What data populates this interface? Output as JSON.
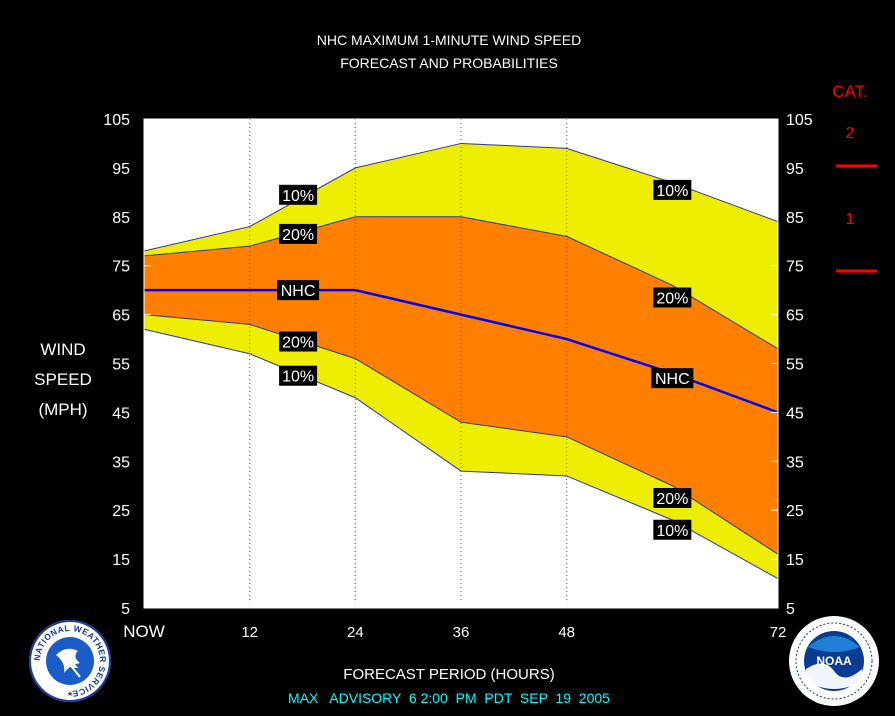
{
  "title_line1": "NHC MAXIMUM 1-MINUTE WIND SPEED",
  "title_line2": "FORECAST AND PROBABILITIES",
  "ylabel_lines": [
    "WIND",
    "SPEED",
    "(MPH)"
  ],
  "xlabel": "FORECAST PERIOD (HOURS)",
  "advisory": "MAX   ADVISORY  6 2:00  PM  PDT  SEP  19  2005",
  "category_header": "CAT.",
  "category_labels": [
    "2",
    "1"
  ],
  "logos": {
    "left": {
      "name": "nws-logo",
      "ring_text": "NATIONAL WEATHER SERVICE"
    },
    "right": {
      "name": "noaa-logo",
      "center_text": "NOAA"
    }
  },
  "colors": {
    "background": "#000000",
    "plot_background": "#ffffff",
    "band_10": "#eeee00",
    "band_20": "#ff8000",
    "nhc_line": "#0000ff",
    "category_red": "#ff0000",
    "footer_text": "#00ffff"
  },
  "chart_data": {
    "type": "area",
    "x": [
      0,
      12,
      24,
      36,
      48,
      60,
      72
    ],
    "x_tick_values": [
      0,
      12,
      24,
      36,
      48,
      72
    ],
    "x_tick_labels": [
      "NOW",
      "12",
      "24",
      "36",
      "48",
      "72"
    ],
    "y_ticks": [
      5,
      15,
      25,
      35,
      45,
      55,
      65,
      75,
      85,
      95,
      105
    ],
    "xlim": [
      0,
      72
    ],
    "ylim": [
      5,
      105
    ],
    "grid_x": [
      12,
      24,
      36,
      48
    ],
    "series": [
      {
        "name": "10%",
        "role": "upper_10",
        "values": [
          78,
          83,
          95,
          100,
          99,
          92,
          84
        ]
      },
      {
        "name": "20%",
        "role": "upper_20",
        "values": [
          77,
          79,
          85,
          85,
          81,
          71,
          58
        ]
      },
      {
        "name": "NHC",
        "role": "forecast",
        "values": [
          70,
          70,
          70,
          65,
          60,
          53,
          45
        ]
      },
      {
        "name": "20%",
        "role": "lower_20",
        "values": [
          65,
          63,
          56,
          43,
          40,
          30,
          16
        ]
      },
      {
        "name": "10%",
        "role": "lower_10",
        "values": [
          62,
          57,
          48,
          33,
          32,
          23,
          11
        ]
      }
    ],
    "annotations": [
      {
        "text": "10%",
        "x": 17.5,
        "y": 89.5
      },
      {
        "text": "20%",
        "x": 17.5,
        "y": 81.5
      },
      {
        "text": "NHC",
        "x": 17.5,
        "y": 70
      },
      {
        "text": "20%",
        "x": 17.5,
        "y": 59.5
      },
      {
        "text": "10%",
        "x": 17.5,
        "y": 52.5
      },
      {
        "text": "10%",
        "x": 60,
        "y": 90.5
      },
      {
        "text": "20%",
        "x": 60,
        "y": 68.5
      },
      {
        "text": "NHC",
        "x": 60,
        "y": 52
      },
      {
        "text": "20%",
        "x": 60,
        "y": 27.5
      },
      {
        "text": "10%",
        "x": 60,
        "y": 21
      }
    ],
    "category_thresholds": [
      96,
      74
    ]
  }
}
